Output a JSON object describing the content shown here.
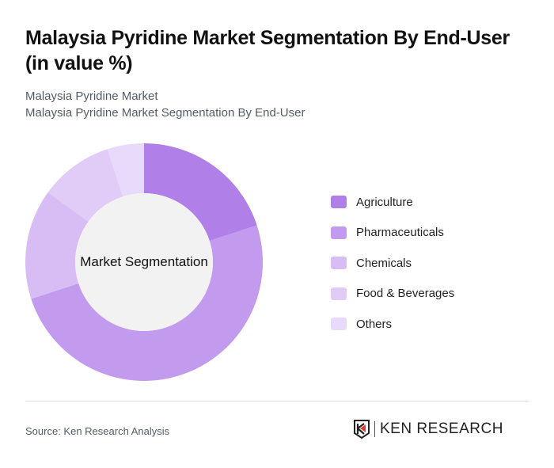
{
  "header": {
    "title": "Malaysia Pyridine Market Segmentation By End-User (in value %)",
    "subtitle1": "Malaysia Pyridine Market",
    "subtitle2": "Malaysia Pyridine Market Segmentation By End-User"
  },
  "chart": {
    "center_label": "Market Segmentation"
  },
  "legend": [
    {
      "label": "Agriculture",
      "color": "#b07fe8"
    },
    {
      "label": "Pharmaceuticals",
      "color": "#c39bee"
    },
    {
      "label": "Chemicals",
      "color": "#d8bdf5"
    },
    {
      "label": "Food & Beverages",
      "color": "#e0ccf7"
    },
    {
      "label": "Others",
      "color": "#e8dafa"
    }
  ],
  "footer": {
    "source": "Source: Ken Research Analysis",
    "logo_text": "KEN RESEARCH"
  },
  "chart_data": {
    "type": "pie",
    "subtype": "donut",
    "title": "Malaysia Pyridine Market Segmentation By End-User (in value %)",
    "center_label": "Market Segmentation",
    "categories": [
      "Agriculture",
      "Pharmaceuticals",
      "Chemicals",
      "Food & Beverages",
      "Others"
    ],
    "values": [
      20,
      50,
      15,
      10,
      5
    ],
    "colors": [
      "#b07fe8",
      "#c39bee",
      "#d8bdf5",
      "#e0ccf7",
      "#e8dafa"
    ],
    "legend_position": "right",
    "unit": "%"
  }
}
